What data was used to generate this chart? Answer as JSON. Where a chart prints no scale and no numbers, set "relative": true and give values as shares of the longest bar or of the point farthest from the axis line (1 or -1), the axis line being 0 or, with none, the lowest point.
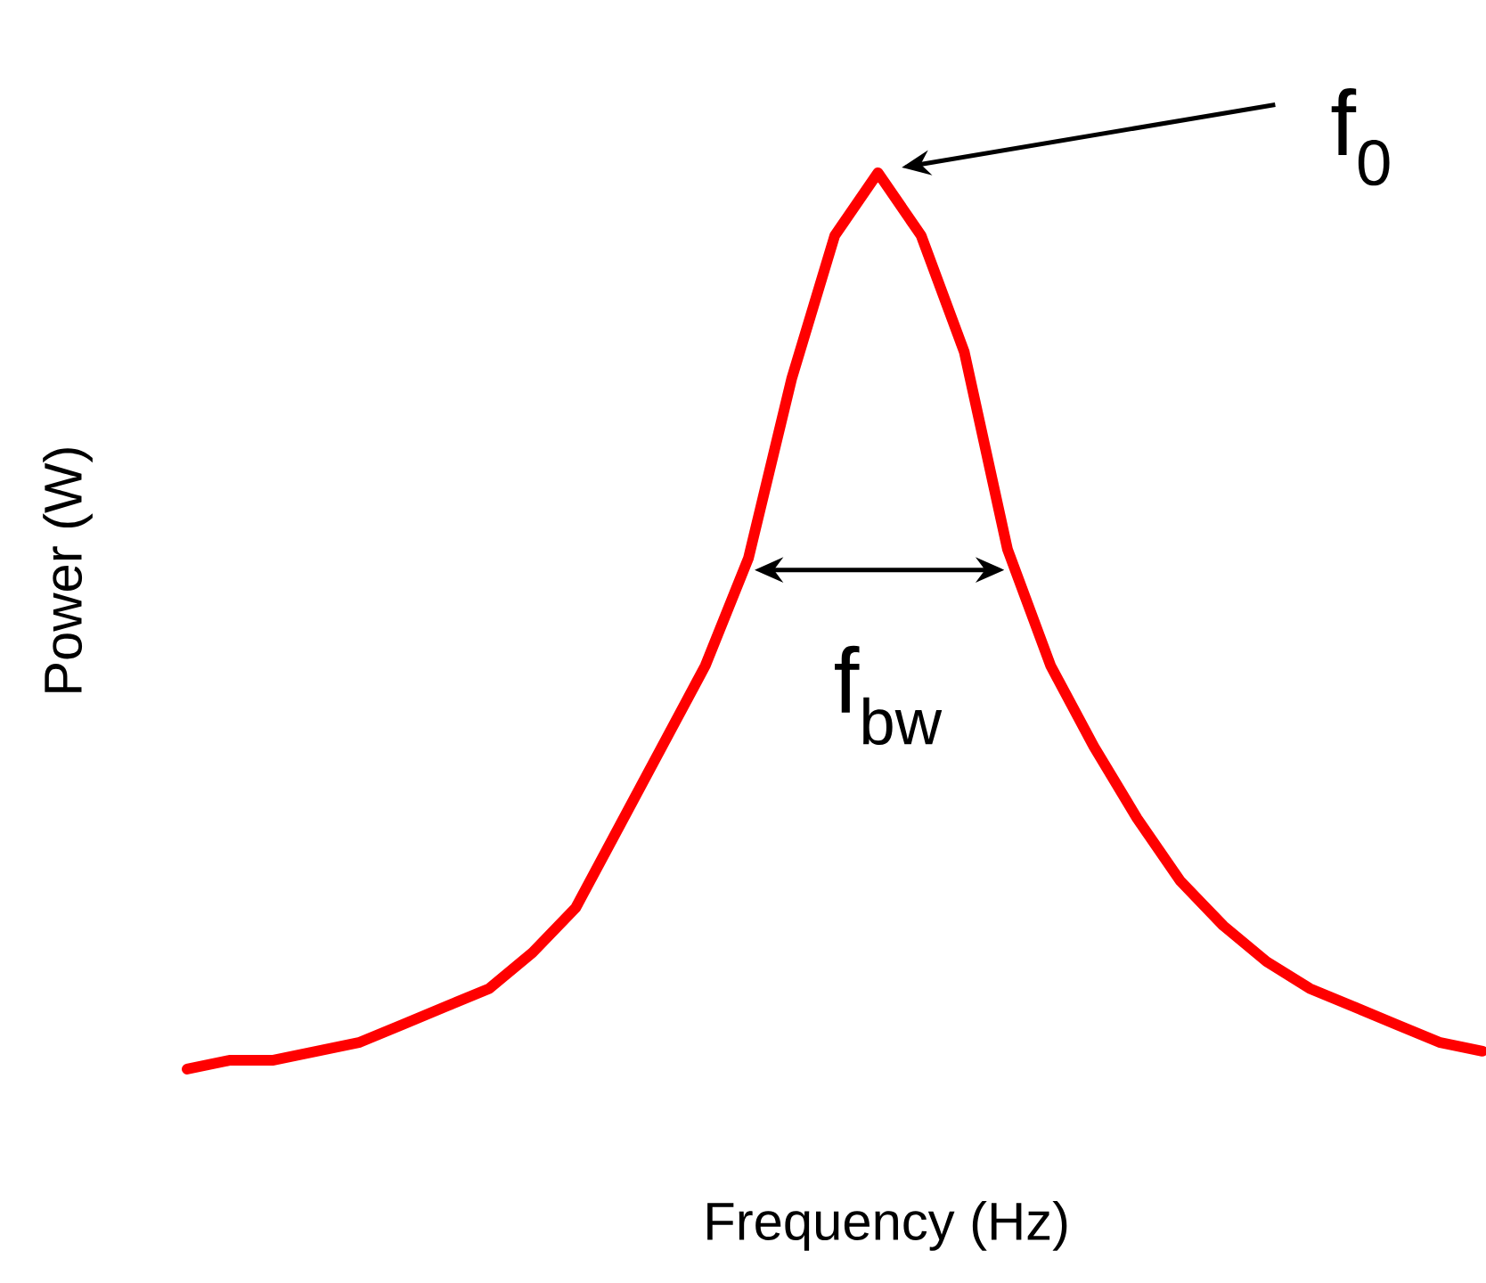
{
  "chart_data": {
    "type": "line",
    "relative": true,
    "xlabel": "Frequency (Hz)",
    "ylabel": "Power (W)",
    "categories": [
      null,
      null,
      null,
      null,
      null,
      null,
      null,
      null,
      null,
      null,
      null,
      null,
      null,
      null,
      null,
      null,
      null,
      null,
      null,
      null,
      null,
      null,
      null,
      null,
      null,
      null,
      null,
      null,
      null,
      null,
      null
    ],
    "series": [
      {
        "color": "#ff0000",
        "values": [
          0,
          0.01,
          0.01,
          0.02,
          0.03,
          0.05,
          0.07,
          0.09,
          0.13,
          0.18,
          0.27,
          0.36,
          0.45,
          0.57,
          0.77,
          0.93,
          1,
          0.93,
          0.8,
          0.58,
          0.45,
          0.36,
          0.28,
          0.21,
          0.16,
          0.12,
          0.09,
          0.07,
          0.05,
          0.03,
          0.02
        ]
      }
    ],
    "marker": "none",
    "line_style": "solid",
    "annotations": [
      "f$_{0}$",
      "f$_{bw}$"
    ]
  }
}
